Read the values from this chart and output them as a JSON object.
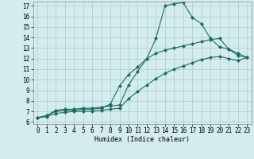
{
  "title": "",
  "xlabel": "Humidex (Indice chaleur)",
  "ylabel": "",
  "bg_color": "#d4ecee",
  "grid_color": "#b0d0d4",
  "line_color": "#1a6b60",
  "xlim": [
    -0.5,
    23.5
  ],
  "ylim": [
    5.8,
    17.4
  ],
  "yticks": [
    6,
    7,
    8,
    9,
    10,
    11,
    12,
    13,
    14,
    15,
    16,
    17
  ],
  "xticks": [
    0,
    1,
    2,
    3,
    4,
    5,
    6,
    7,
    8,
    9,
    10,
    11,
    12,
    13,
    14,
    15,
    16,
    17,
    18,
    19,
    20,
    21,
    22,
    23
  ],
  "line1_x": [
    0,
    1,
    2,
    3,
    4,
    5,
    6,
    7,
    8,
    9,
    10,
    11,
    12,
    13,
    14,
    15,
    16,
    17,
    18,
    19,
    20,
    21,
    22,
    23
  ],
  "line1_y": [
    6.4,
    6.6,
    7.1,
    7.2,
    7.2,
    7.3,
    7.3,
    7.4,
    7.5,
    7.6,
    9.5,
    10.8,
    12.0,
    13.9,
    17.0,
    17.2,
    17.3,
    15.9,
    15.3,
    13.9,
    13.1,
    12.9,
    12.5,
    12.1
  ],
  "line2_x": [
    0,
    1,
    2,
    3,
    4,
    5,
    6,
    7,
    8,
    9,
    10,
    11,
    12,
    13,
    14,
    15,
    16,
    17,
    18,
    19,
    20,
    21,
    22,
    23
  ],
  "line2_y": [
    6.4,
    6.6,
    7.0,
    7.1,
    7.1,
    7.2,
    7.2,
    7.3,
    7.7,
    9.4,
    10.5,
    11.2,
    12.0,
    12.5,
    12.8,
    13.0,
    13.2,
    13.4,
    13.6,
    13.8,
    13.9,
    12.9,
    12.3,
    12.1
  ],
  "line3_x": [
    0,
    1,
    2,
    3,
    4,
    5,
    6,
    7,
    8,
    9,
    10,
    11,
    12,
    13,
    14,
    15,
    16,
    17,
    18,
    19,
    20,
    21,
    22,
    23
  ],
  "line3_y": [
    6.4,
    6.5,
    6.8,
    6.9,
    7.0,
    7.0,
    7.0,
    7.1,
    7.2,
    7.3,
    8.2,
    8.9,
    9.5,
    10.1,
    10.6,
    11.0,
    11.3,
    11.6,
    11.9,
    12.1,
    12.2,
    12.0,
    11.8,
    12.1
  ],
  "xlabel_fontsize": 6,
  "tick_fontsize": 5.5
}
